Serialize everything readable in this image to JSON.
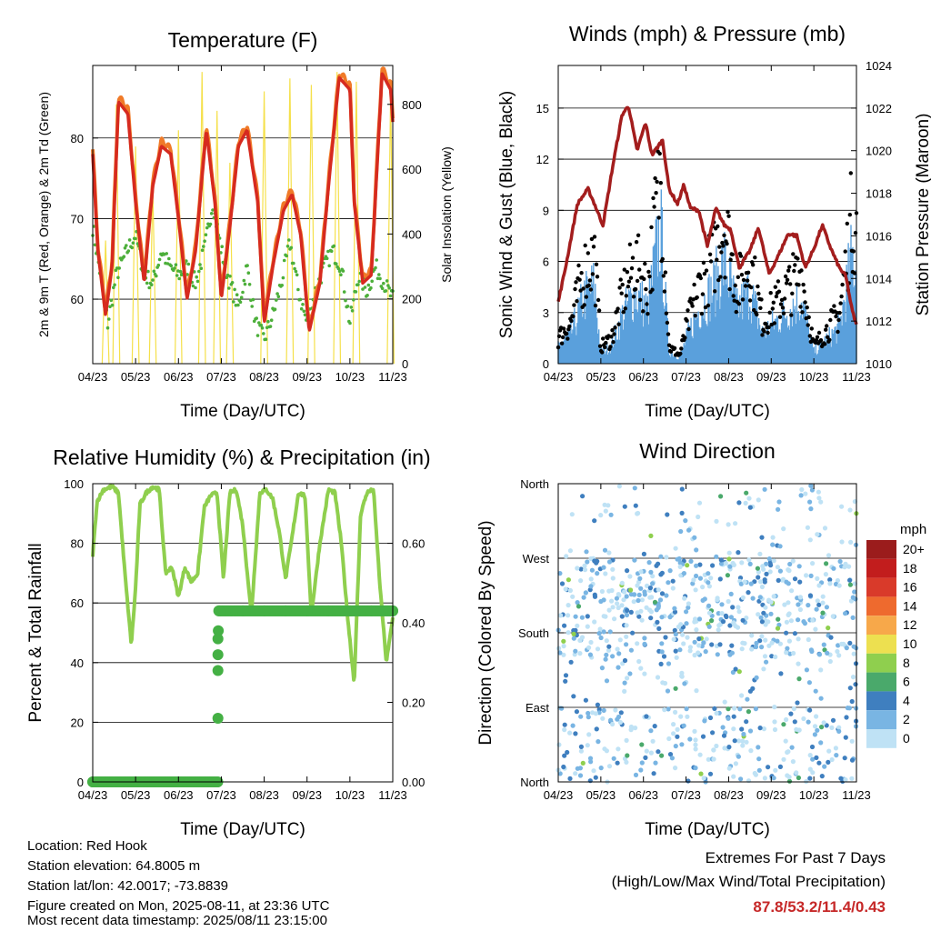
{
  "panels": {
    "temperature": {
      "title": "Temperature (F)",
      "ylabel_left": "2m & 9m T (Red, Orange) & 2m Td (Green)",
      "ylabel_right": "Solar Insolation (Yellow)",
      "xlabel": "Time (Day/UTC)"
    },
    "winds": {
      "title": "Winds (mph) & Pressure (mb)",
      "ylabel_left": "Sonic Wind & Gust (Blue, Black)",
      "ylabel_right": "Station Pressure (Maroon)",
      "xlabel": "Time (Day/UTC)"
    },
    "humidity": {
      "title": "Relative Humidity (%) & Precipitation (in)",
      "ylabel_left": "Percent & Total Rainfall",
      "xlabel": "Time (Day/UTC)"
    },
    "direction": {
      "title": "Wind Direction",
      "ylabel_left": "Direction (Colored By Speed)",
      "xlabel": "Time (Day/UTC)",
      "legend_title": "mph"
    }
  },
  "station": {
    "location": "Location: Red Hook",
    "elevation": "Station elevation: 64.8005 m",
    "latlon": "Station lat/lon: 42.0017; -73.8839",
    "created": "Figure created on Mon, 2025-08-11, at 23:36 UTC",
    "recent": "Most recent data timestamp: 2025/08/11 23:15:00"
  },
  "extremes": {
    "title": "Extremes For Past 7 Days",
    "subtitle": "(High/Low/Max Wind/Total Precipitation)",
    "values": "87.8/53.2/11.4/0.43",
    "color": "#c62828"
  },
  "colors": {
    "temp_2m": "#d62a1f",
    "temp_9m": "#f07a28",
    "dewpoint": "#4caf3a",
    "solar": "#f5e04a",
    "gust": "#000000",
    "wind": "#5aa0dc",
    "pressure": "#a31d1d",
    "rh": "#8fcf4e",
    "precip": "#44b044"
  },
  "chart_data": [
    {
      "type": "line",
      "title": "Temperature (F)",
      "x_ticks": [
        "04/23",
        "05/23",
        "06/23",
        "07/23",
        "08/23",
        "09/23",
        "10/23",
        "11/23"
      ],
      "xlim": [
        0,
        7
      ],
      "ylim": [
        52,
        89
      ],
      "y_ticks": [
        60,
        70,
        80
      ],
      "y2lim": [
        0,
        920
      ],
      "y2_ticks": [
        0,
        200,
        400,
        600,
        800
      ],
      "grid": true,
      "series": [
        {
          "key": "t2m",
          "x": [
            0,
            0.12,
            0.3,
            0.45,
            0.6,
            0.82,
            1.0,
            1.2,
            1.4,
            1.6,
            1.82,
            2.0,
            2.2,
            2.4,
            2.65,
            2.85,
            3.0,
            3.2,
            3.4,
            3.6,
            3.85,
            4.0,
            4.2,
            4.45,
            4.65,
            4.85,
            5.05,
            5.3,
            5.5,
            5.75,
            6.0,
            6.1,
            6.3,
            6.5,
            6.75,
            6.95,
            7.0
          ],
          "y": [
            78,
            66,
            58,
            64,
            84.5,
            83,
            72,
            62,
            74,
            79,
            78,
            70,
            60,
            66,
            81,
            72,
            60,
            69,
            79,
            81,
            72,
            57,
            64,
            71,
            73,
            68,
            56,
            62,
            74,
            87.5,
            86,
            72,
            62,
            63,
            88,
            86,
            82
          ]
        },
        {
          "key": "td2m",
          "x": [
            0,
            0.15,
            0.35,
            0.55,
            0.8,
            1.0,
            1.2,
            1.4,
            1.6,
            1.8,
            2.0,
            2.2,
            2.4,
            2.6,
            2.8,
            3.0,
            3.2,
            3.4,
            3.6,
            3.8,
            4.0,
            4.2,
            4.4,
            4.6,
            4.8,
            5.0,
            5.2,
            5.4,
            5.6,
            5.8,
            6.0,
            6.2,
            6.4,
            6.6,
            6.8,
            7.0
          ],
          "y": [
            69,
            64,
            57,
            63,
            66,
            68,
            63,
            62,
            66,
            64,
            63,
            64,
            62,
            66,
            72,
            66,
            62,
            59,
            64,
            57,
            55,
            58,
            62,
            67,
            61,
            57,
            61,
            64,
            66,
            64,
            57,
            63,
            61,
            64,
            62,
            60
          ]
        },
        {
          "key": "solar",
          "peaks": [
            0.3,
            0.55,
            1.0,
            1.4,
            2.0,
            2.55,
            2.9,
            3.2,
            4.0,
            4.6,
            5.1,
            5.7,
            6.15,
            6.95
          ],
          "peak_values": [
            380,
            800,
            670,
            550,
            720,
            900,
            780,
            620,
            840,
            880,
            860,
            900,
            870,
            840
          ]
        }
      ]
    },
    {
      "type": "line",
      "title": "Winds (mph) & Pressure (mb)",
      "x_ticks": [
        "04/23",
        "05/23",
        "06/23",
        "07/23",
        "08/23",
        "09/23",
        "10/23",
        "11/23"
      ],
      "xlim": [
        0,
        7
      ],
      "ylim": [
        0,
        17.5
      ],
      "y_ticks": [
        0,
        3,
        6,
        9,
        12,
        15
      ],
      "y2lim": [
        1010,
        1024
      ],
      "y2_ticks": [
        1010,
        1012,
        1014,
        1016,
        1018,
        1020,
        1022,
        1024
      ],
      "grid": true,
      "series": [
        {
          "key": "pressure",
          "x": [
            0,
            0.2,
            0.45,
            0.7,
            0.85,
            1.05,
            1.3,
            1.5,
            1.65,
            1.85,
            2.05,
            2.2,
            2.45,
            2.6,
            2.8,
            2.95,
            3.1,
            3.3,
            3.5,
            3.7,
            3.9,
            4.05,
            4.25,
            4.5,
            4.7,
            4.95,
            5.15,
            5.4,
            5.6,
            5.8,
            6.0,
            6.2,
            6.4,
            6.6,
            6.75,
            6.9,
            7.0
          ],
          "y": [
            1012.9,
            1014.8,
            1017.5,
            1018.2,
            1017.5,
            1016.5,
            1019.5,
            1021.7,
            1022.1,
            1020,
            1021.3,
            1019.8,
            1020.5,
            1018.2,
            1017.5,
            1018.4,
            1017.3,
            1017.2,
            1015.5,
            1017.3,
            1016.5,
            1016.3,
            1014.5,
            1015.3,
            1016.4,
            1014.2,
            1015,
            1016.1,
            1016,
            1014.5,
            1015.4,
            1016.5,
            1015.4,
            1014.5,
            1014.1,
            1012.5,
            1011.8
          ]
        },
        {
          "key": "wind_envelope",
          "x": [
            0,
            0.3,
            0.6,
            0.85,
            1.0,
            1.25,
            1.5,
            1.8,
            2.1,
            2.4,
            2.6,
            2.85,
            3.05,
            3.3,
            3.6,
            3.9,
            4.2,
            4.5,
            4.8,
            5.1,
            5.4,
            5.7,
            6.0,
            6.3,
            6.6,
            6.9,
            7.0
          ],
          "y": [
            1.5,
            2.5,
            5.5,
            6.5,
            1,
            1.5,
            4,
            6,
            4.5,
            11.5,
            1,
            0.5,
            2.5,
            4.5,
            6,
            8.5,
            4.5,
            6.2,
            2.5,
            3.5,
            4.5,
            5.5,
            1,
            2,
            3,
            9,
            8
          ]
        }
      ]
    },
    {
      "type": "line",
      "title": "Relative Humidity (%) & Precipitation (in)",
      "x_ticks": [
        "04/23",
        "05/23",
        "06/23",
        "07/23",
        "08/23",
        "09/23",
        "10/23",
        "11/23"
      ],
      "xlim": [
        0,
        7
      ],
      "ylim": [
        0,
        100
      ],
      "y_ticks": [
        0,
        20,
        40,
        60,
        80,
        100
      ],
      "y2lim": [
        0,
        0.75
      ],
      "y2_ticks": [
        0.0,
        0.2,
        0.4,
        0.6
      ],
      "grid": true,
      "series": [
        {
          "key": "rh",
          "x": [
            0,
            0.1,
            0.25,
            0.45,
            0.6,
            0.75,
            0.9,
            1.0,
            1.1,
            1.25,
            1.4,
            1.55,
            1.7,
            1.85,
            2.0,
            2.15,
            2.3,
            2.45,
            2.6,
            2.75,
            2.9,
            3.05,
            3.2,
            3.35,
            3.5,
            3.7,
            3.9,
            4.05,
            4.2,
            4.35,
            4.5,
            4.65,
            4.8,
            4.95,
            5.1,
            5.3,
            5.5,
            5.65,
            5.8,
            5.95,
            6.1,
            6.25,
            6.4,
            6.55,
            6.7,
            6.85,
            7.0
          ],
          "y": [
            76,
            94,
            98,
            99,
            97,
            70,
            46,
            65,
            93,
            97,
            99,
            98,
            70,
            72,
            62,
            72,
            67,
            70,
            92,
            96,
            97,
            68,
            97,
            98,
            86,
            56,
            97,
            98,
            95,
            84,
            68,
            82,
            97,
            96,
            56,
            80,
            98,
            97,
            80,
            55,
            33,
            90,
            97,
            98,
            66,
            40,
            55
          ]
        },
        {
          "key": "precip",
          "points_x": [
            0,
            0.5,
            1.0,
            1.5,
            2.0,
            2.9,
            2.92,
            2.92,
            2.92,
            2.92,
            2.93,
            2.95,
            3.5,
            4.0,
            4.5,
            5.0,
            5.5,
            6.0,
            6.5,
            7.0
          ],
          "points_y": [
            0,
            0,
            0,
            0,
            0,
            0,
            0.16,
            0.28,
            0.32,
            0.36,
            0.38,
            0.43,
            0.43,
            0.43,
            0.43,
            0.43,
            0.43,
            0.43,
            0.43,
            0.43
          ]
        }
      ]
    },
    {
      "type": "scatter",
      "title": "Wind Direction",
      "x_ticks": [
        "04/23",
        "05/23",
        "06/23",
        "07/23",
        "08/23",
        "09/23",
        "10/23",
        "11/23"
      ],
      "y_ticks": [
        "North",
        "East",
        "South",
        "West",
        "North"
      ],
      "y_values": [
        0,
        90,
        180,
        270,
        360
      ],
      "xlim": [
        0,
        7
      ],
      "ylim": [
        0,
        360
      ],
      "grid": true,
      "legend": {
        "title": "mph",
        "labels": [
          "20+",
          "18",
          "16",
          "14",
          "12",
          "10",
          "8",
          "6",
          "4",
          "2",
          "0"
        ],
        "colors": [
          "#9b1c1c",
          "#c21d1d",
          "#d93a2a",
          "#ee6a2e",
          "#f7a84a",
          "#ede050",
          "#8fcf4e",
          "#4aa96b",
          "#3f7fbf",
          "#79b5e3",
          "#bfe2f5"
        ]
      }
    }
  ]
}
